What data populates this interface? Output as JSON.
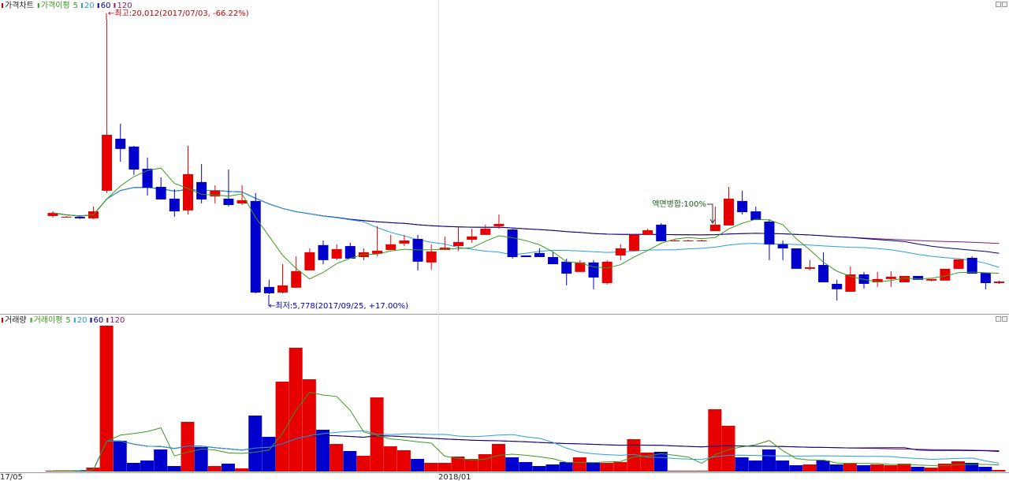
{
  "chart_data": [
    {
      "type": "candlestick",
      "legend_title": "가격차트",
      "ma_label": "가격이평",
      "ma_periods": [
        5,
        20,
        60,
        120
      ],
      "up_color": "#e60000",
      "down_color": "#0000cc",
      "ma_colors": [
        "#3c9a1e",
        "#2a9fd6",
        "#000080",
        "#8b1a6b"
      ],
      "open": [
        9830,
        9790,
        9790,
        9710,
        11140,
        13840,
        13430,
        12280,
        11340,
        10730,
        10120,
        11590,
        10850,
        10730,
        10480,
        10610,
        6150,
        5860,
        6110,
        7010,
        8320,
        7620,
        8270,
        7700,
        7870,
        8070,
        8400,
        8640,
        7420,
        8070,
        8270,
        8600,
        8850,
        9300,
        9130,
        7780,
        7910,
        7700,
        7460,
        6930,
        7420,
        6350,
        7780,
        8030,
        8850,
        9380,
        8560,
        8560,
        8560,
        9050,
        9340,
        10610,
        10070,
        9540,
        8360,
        8150,
        7090,
        7290,
        6310,
        5900,
        6800,
        6390,
        6560,
        6390,
        6720,
        6480,
        6480,
        7090,
        7660,
        6880,
        6350
      ],
      "high": [
        10070,
        9830,
        9830,
        10320,
        20012,
        14610,
        13470,
        12860,
        11830,
        11220,
        13470,
        12530,
        11420,
        12240,
        11420,
        11020,
        6520,
        7330,
        7740,
        8150,
        8560,
        8360,
        8440,
        8150,
        9300,
        8850,
        8850,
        8850,
        8360,
        8770,
        9260,
        9170,
        9380,
        9910,
        9170,
        7780,
        8150,
        7950,
        7620,
        7540,
        7540,
        7540,
        8360,
        8890,
        9170,
        9460,
        8600,
        8600,
        8600,
        10320,
        11340,
        11140,
        10320,
        9670,
        8560,
        8150,
        7540,
        7950,
        6520,
        7210,
        6930,
        6930,
        6970,
        6720,
        6720,
        6560,
        7090,
        7580,
        7740,
        6880,
        6480
      ],
      "low": [
        9750,
        9750,
        9670,
        9670,
        11020,
        12650,
        11960,
        10890,
        10690,
        9790,
        9910,
        10480,
        10480,
        10320,
        10400,
        5820,
        5778,
        5820,
        6110,
        7010,
        7330,
        7540,
        7620,
        7540,
        7740,
        8070,
        8270,
        7010,
        7050,
        8070,
        8030,
        8440,
        8850,
        9170,
        7620,
        7700,
        7700,
        7330,
        6230,
        6930,
        6030,
        6270,
        7540,
        8030,
        8850,
        8520,
        8520,
        8520,
        8520,
        9050,
        9340,
        9910,
        9620,
        7540,
        7540,
        7090,
        7010,
        6390,
        5450,
        5900,
        6070,
        6150,
        6150,
        6390,
        6520,
        6430,
        6480,
        7090,
        6840,
        6030,
        6310
      ],
      "close": [
        9990,
        9790,
        9710,
        10070,
        14040,
        13310,
        12240,
        11300,
        10690,
        10070,
        12000,
        10690,
        11140,
        10400,
        10650,
        5860,
        5820,
        6230,
        6970,
        7950,
        7540,
        8110,
        7620,
        7950,
        8030,
        8360,
        8560,
        7460,
        7990,
        8190,
        8480,
        8770,
        9170,
        9420,
        7700,
        7700,
        7700,
        7330,
        6840,
        7420,
        6640,
        7460,
        8150,
        8850,
        9090,
        8520,
        8560,
        8560,
        8560,
        9380,
        10730,
        10030,
        9620,
        8360,
        8150,
        7090,
        7170,
        6390,
        6030,
        6800,
        6310,
        6560,
        6680,
        6720,
        6520,
        6560,
        7090,
        7580,
        6840,
        6350,
        6430
      ],
      "annotations": [
        "←최고:20,012(2017/07/03, -66.22%)",
        "←최저:5,778(2017/09/25, +17.00%)",
        "액면병합:100%"
      ]
    },
    {
      "type": "bar",
      "legend_title": "거래량",
      "ma_label": "거래이평",
      "ma_periods": [
        5,
        20,
        60,
        120
      ],
      "ma_colors": [
        "#3c9a1e",
        "#2a9fd6",
        "#000080",
        "#8b1a6b"
      ],
      "values": [
        1,
        1,
        1,
        5,
        185,
        39,
        11,
        14,
        28,
        7,
        63,
        31,
        7,
        10,
        4,
        71,
        44,
        114,
        157,
        117,
        53,
        35,
        26,
        20,
        94,
        32,
        27,
        16,
        11,
        11,
        19,
        16,
        22,
        35,
        18,
        12,
        7,
        9,
        12,
        18,
        11,
        11,
        12,
        41,
        24,
        25,
        1,
        1,
        1,
        79,
        58,
        18,
        14,
        28,
        14,
        8,
        9,
        14,
        9,
        11,
        8,
        9,
        8,
        10,
        6,
        5,
        10,
        13,
        11,
        6,
        2
      ],
      "x_labels": [
        "17/05",
        "2018/01"
      ]
    }
  ]
}
